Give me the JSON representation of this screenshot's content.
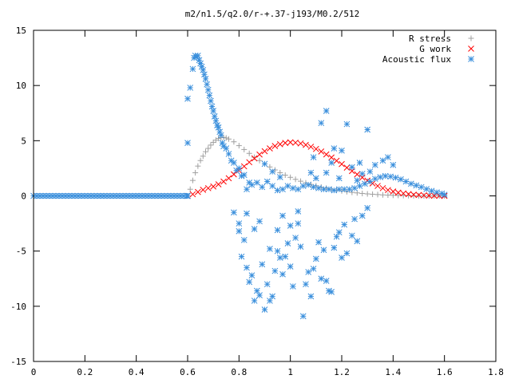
{
  "chart_data": {
    "type": "scatter",
    "title": "m2/n1.5/q2.0/r-+.37-j193/M0.2/512",
    "xlabel": "",
    "ylabel": "",
    "xlim": [
      0,
      1.8
    ],
    "ylim": [
      -15,
      15
    ],
    "x_ticks": [
      "0",
      "0.2",
      "0.4",
      "0.6",
      "0.8",
      "1",
      "1.2",
      "1.4",
      "1.6",
      "1.8"
    ],
    "y_ticks": [
      "15",
      "10",
      "5",
      "0",
      "-5",
      "-10",
      "-15"
    ],
    "legend_position": "top-right",
    "grid": false,
    "series": [
      {
        "name": "R stress",
        "marker": "plus",
        "color": "#a0a0a0",
        "points": [
          [
            0.0,
            0.0
          ],
          [
            0.6,
            0.0
          ],
          [
            0.61,
            0.6
          ],
          [
            0.62,
            1.4
          ],
          [
            0.63,
            2.1
          ],
          [
            0.64,
            2.7
          ],
          [
            0.65,
            3.2
          ],
          [
            0.66,
            3.6
          ],
          [
            0.67,
            4.0
          ],
          [
            0.68,
            4.3
          ],
          [
            0.69,
            4.6
          ],
          [
            0.7,
            4.85
          ],
          [
            0.71,
            5.05
          ],
          [
            0.72,
            5.2
          ],
          [
            0.73,
            5.28
          ],
          [
            0.74,
            5.3
          ],
          [
            0.75,
            5.25
          ],
          [
            0.76,
            5.15
          ],
          [
            0.78,
            4.9
          ],
          [
            0.8,
            4.55
          ],
          [
            0.82,
            4.2
          ],
          [
            0.84,
            3.85
          ],
          [
            0.86,
            3.5
          ],
          [
            0.88,
            3.2
          ],
          [
            0.9,
            2.9
          ],
          [
            0.92,
            2.62
          ],
          [
            0.94,
            2.35
          ],
          [
            0.96,
            2.1
          ],
          [
            0.98,
            1.88
          ],
          [
            1.0,
            1.68
          ],
          [
            1.02,
            1.5
          ],
          [
            1.04,
            1.33
          ],
          [
            1.06,
            1.18
          ],
          [
            1.08,
            1.04
          ],
          [
            1.1,
            0.92
          ],
          [
            1.12,
            0.8
          ],
          [
            1.14,
            0.7
          ],
          [
            1.16,
            0.6
          ],
          [
            1.18,
            0.52
          ],
          [
            1.2,
            0.45
          ],
          [
            1.22,
            0.38
          ],
          [
            1.24,
            0.32
          ],
          [
            1.26,
            0.27
          ],
          [
            1.28,
            0.22
          ],
          [
            1.3,
            0.18
          ],
          [
            1.32,
            0.15
          ],
          [
            1.34,
            0.12
          ],
          [
            1.36,
            0.09
          ],
          [
            1.38,
            0.07
          ],
          [
            1.4,
            0.05
          ],
          [
            1.42,
            0.04
          ],
          [
            1.44,
            0.03
          ],
          [
            1.46,
            0.02
          ],
          [
            1.48,
            0.01
          ],
          [
            1.5,
            0.01
          ],
          [
            1.52,
            0.0
          ],
          [
            1.54,
            0.0
          ],
          [
            1.56,
            0.0
          ],
          [
            1.58,
            0.0
          ],
          [
            1.6,
            0.0
          ]
        ]
      },
      {
        "name": "G work",
        "marker": "cross",
        "color": "#ff0000",
        "points": [
          [
            0.6,
            0.0
          ],
          [
            0.62,
            0.15
          ],
          [
            0.64,
            0.35
          ],
          [
            0.66,
            0.55
          ],
          [
            0.68,
            0.7
          ],
          [
            0.7,
            0.85
          ],
          [
            0.72,
            1.05
          ],
          [
            0.74,
            1.3
          ],
          [
            0.76,
            1.6
          ],
          [
            0.78,
            1.95
          ],
          [
            0.8,
            2.3
          ],
          [
            0.82,
            2.68
          ],
          [
            0.84,
            3.05
          ],
          [
            0.86,
            3.4
          ],
          [
            0.88,
            3.75
          ],
          [
            0.9,
            4.05
          ],
          [
            0.92,
            4.3
          ],
          [
            0.94,
            4.52
          ],
          [
            0.96,
            4.68
          ],
          [
            0.98,
            4.8
          ],
          [
            1.0,
            4.85
          ],
          [
            1.02,
            4.82
          ],
          [
            1.04,
            4.75
          ],
          [
            1.06,
            4.62
          ],
          [
            1.08,
            4.45
          ],
          [
            1.1,
            4.25
          ],
          [
            1.12,
            4.02
          ],
          [
            1.14,
            3.76
          ],
          [
            1.16,
            3.48
          ],
          [
            1.18,
            3.18
          ],
          [
            1.2,
            2.88
          ],
          [
            1.22,
            2.56
          ],
          [
            1.24,
            2.25
          ],
          [
            1.26,
            1.95
          ],
          [
            1.28,
            1.66
          ],
          [
            1.3,
            1.38
          ],
          [
            1.32,
            1.13
          ],
          [
            1.34,
            0.9
          ],
          [
            1.36,
            0.7
          ],
          [
            1.38,
            0.53
          ],
          [
            1.4,
            0.4
          ],
          [
            1.42,
            0.3
          ],
          [
            1.44,
            0.22
          ],
          [
            1.46,
            0.16
          ],
          [
            1.48,
            0.11
          ],
          [
            1.5,
            0.08
          ],
          [
            1.52,
            0.05
          ],
          [
            1.54,
            0.03
          ],
          [
            1.56,
            0.02
          ],
          [
            1.58,
            0.01
          ],
          [
            1.6,
            0.0
          ]
        ]
      },
      {
        "name": "Acoustic flux",
        "marker": "star",
        "color": "#3a8fdc",
        "points": [
          [
            0.0,
            0.0
          ],
          [
            0.6,
            0.0
          ],
          [
            0.6,
            4.8
          ],
          [
            0.6,
            8.8
          ],
          [
            0.61,
            9.8
          ],
          [
            0.62,
            11.5
          ],
          [
            0.625,
            12.5
          ],
          [
            0.63,
            12.7
          ],
          [
            0.635,
            12.6
          ],
          [
            0.64,
            12.7
          ],
          [
            0.645,
            12.3
          ],
          [
            0.65,
            12.0
          ],
          [
            0.655,
            11.7
          ],
          [
            0.66,
            11.4
          ],
          [
            0.665,
            11.0
          ],
          [
            0.67,
            10.6
          ],
          [
            0.675,
            10.1
          ],
          [
            0.68,
            9.6
          ],
          [
            0.685,
            9.1
          ],
          [
            0.69,
            8.6
          ],
          [
            0.695,
            8.1
          ],
          [
            0.7,
            7.7
          ],
          [
            0.705,
            7.2
          ],
          [
            0.71,
            6.8
          ],
          [
            0.715,
            6.4
          ],
          [
            0.72,
            6.2
          ],
          [
            0.725,
            5.8
          ],
          [
            0.73,
            5.5
          ],
          [
            0.735,
            4.8
          ],
          [
            0.74,
            4.5
          ],
          [
            0.75,
            4.3
          ],
          [
            0.76,
            3.8
          ],
          [
            0.77,
            3.2
          ],
          [
            0.78,
            3.0
          ],
          [
            0.79,
            2.3
          ],
          [
            0.8,
            2.5
          ],
          [
            0.81,
            1.8
          ],
          [
            0.82,
            1.9
          ],
          [
            0.83,
            0.6
          ],
          [
            0.84,
            1.2
          ],
          [
            0.85,
            1.0
          ],
          [
            0.87,
            1.2
          ],
          [
            0.89,
            0.8
          ],
          [
            0.91,
            1.3
          ],
          [
            0.93,
            0.9
          ],
          [
            0.95,
            0.5
          ],
          [
            0.97,
            0.6
          ],
          [
            0.99,
            0.9
          ],
          [
            1.01,
            0.7
          ],
          [
            1.03,
            0.6
          ],
          [
            1.05,
            0.9
          ],
          [
            1.07,
            1.0
          ],
          [
            1.09,
            0.8
          ],
          [
            1.11,
            0.7
          ],
          [
            1.13,
            0.6
          ],
          [
            1.15,
            0.6
          ],
          [
            1.17,
            0.5
          ],
          [
            1.19,
            0.6
          ],
          [
            1.21,
            0.6
          ],
          [
            1.23,
            0.6
          ],
          [
            1.25,
            0.7
          ],
          [
            1.27,
            0.9
          ],
          [
            1.29,
            1.1
          ],
          [
            1.31,
            1.3
          ],
          [
            1.33,
            1.55
          ],
          [
            1.35,
            1.7
          ],
          [
            1.37,
            1.8
          ],
          [
            1.39,
            1.75
          ],
          [
            1.41,
            1.65
          ],
          [
            1.43,
            1.5
          ],
          [
            1.45,
            1.3
          ],
          [
            1.47,
            1.1
          ],
          [
            1.49,
            0.95
          ],
          [
            1.51,
            0.8
          ],
          [
            1.53,
            0.62
          ],
          [
            1.55,
            0.45
          ],
          [
            1.57,
            0.32
          ],
          [
            1.59,
            0.22
          ],
          [
            1.6,
            0.1
          ],
          [
            0.78,
            -1.5
          ],
          [
            0.8,
            -2.5
          ],
          [
            0.82,
            -4.0
          ],
          [
            0.8,
            -3.2
          ],
          [
            0.81,
            -5.5
          ],
          [
            0.83,
            -6.5
          ],
          [
            0.84,
            -7.8
          ],
          [
            0.85,
            -7.2
          ],
          [
            0.86,
            -9.5
          ],
          [
            0.87,
            -8.6
          ],
          [
            0.88,
            -9.0
          ],
          [
            0.89,
            -6.2
          ],
          [
            0.9,
            -10.3
          ],
          [
            0.91,
            -8.0
          ],
          [
            0.92,
            -9.5
          ],
          [
            0.93,
            -9.1
          ],
          [
            0.94,
            -6.8
          ],
          [
            0.95,
            -5.0
          ],
          [
            0.96,
            -5.6
          ],
          [
            0.97,
            -7.1
          ],
          [
            0.98,
            -5.5
          ],
          [
            0.99,
            -4.3
          ],
          [
            1.0,
            -6.4
          ],
          [
            1.01,
            -8.2
          ],
          [
            1.02,
            -3.8
          ],
          [
            1.03,
            -2.5
          ],
          [
            1.04,
            -4.6
          ],
          [
            1.05,
            -10.9
          ],
          [
            1.06,
            -8.0
          ],
          [
            1.07,
            -6.9
          ],
          [
            1.08,
            -9.1
          ],
          [
            1.09,
            -6.6
          ],
          [
            1.1,
            -5.7
          ],
          [
            1.11,
            -4.2
          ],
          [
            1.12,
            -7.5
          ],
          [
            1.13,
            -4.9
          ],
          [
            1.14,
            -7.7
          ],
          [
            1.15,
            -8.6
          ],
          [
            1.16,
            -8.7
          ],
          [
            1.17,
            -4.7
          ],
          [
            1.18,
            -3.7
          ],
          [
            1.19,
            -3.3
          ],
          [
            1.2,
            -5.6
          ],
          [
            1.21,
            -2.6
          ],
          [
            1.22,
            -5.2
          ],
          [
            1.24,
            -3.6
          ],
          [
            1.25,
            -2.1
          ],
          [
            1.26,
            -4.1
          ],
          [
            1.28,
            -1.8
          ],
          [
            1.3,
            -1.1
          ],
          [
            0.83,
            -1.6
          ],
          [
            0.86,
            -3.0
          ],
          [
            0.88,
            -2.3
          ],
          [
            0.92,
            -4.8
          ],
          [
            0.95,
            -3.1
          ],
          [
            0.97,
            -1.8
          ],
          [
            1.0,
            -2.7
          ],
          [
            1.03,
            -1.4
          ],
          [
            0.9,
            2.9
          ],
          [
            0.93,
            2.2
          ],
          [
            0.96,
            1.7
          ],
          [
            1.09,
            3.5
          ],
          [
            1.12,
            6.6
          ],
          [
            1.14,
            7.7
          ],
          [
            1.17,
            4.3
          ],
          [
            1.2,
            4.1
          ],
          [
            1.22,
            6.5
          ],
          [
            1.24,
            2.6
          ],
          [
            1.27,
            3.0
          ],
          [
            1.3,
            6.0
          ],
          [
            1.31,
            2.2
          ],
          [
            1.33,
            2.8
          ],
          [
            1.36,
            3.2
          ],
          [
            1.38,
            3.5
          ],
          [
            1.4,
            2.8
          ],
          [
            1.08,
            2.1
          ],
          [
            1.1,
            1.6
          ],
          [
            1.14,
            2.1
          ],
          [
            1.16,
            3.0
          ],
          [
            1.19,
            1.6
          ],
          [
            1.26,
            1.4
          ],
          [
            1.28,
            2.0
          ]
        ]
      }
    ]
  }
}
